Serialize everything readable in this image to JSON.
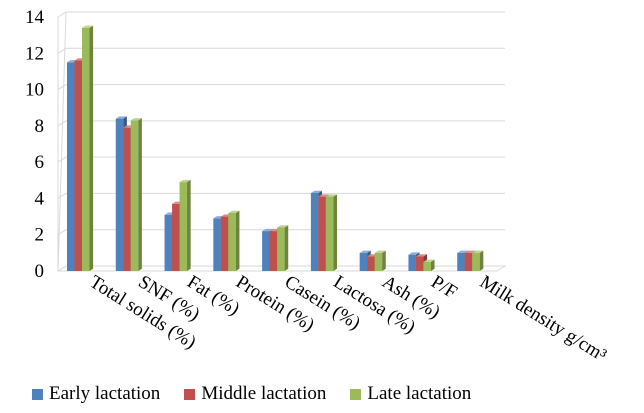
{
  "chart_data": {
    "type": "bar",
    "bar_style": "3d",
    "categories": [
      "Total solids (%)",
      "SNF (%)",
      "Fat (%)",
      "Protein (%)",
      "Casein (%)",
      "Lactosa (%)",
      "Ash (%)",
      "P/F",
      "Milk density g/cm³"
    ],
    "series": [
      {
        "name": "Early lactation",
        "color": "#4f81bd",
        "values": [
          11.5,
          8.4,
          3.1,
          2.9,
          2.2,
          4.3,
          1.0,
          0.9,
          1.0
        ]
      },
      {
        "name": "Middle lactation",
        "color": "#c0504d",
        "values": [
          11.6,
          7.9,
          3.7,
          3.0,
          2.2,
          4.1,
          0.8,
          0.8,
          1.0
        ]
      },
      {
        "name": "Late lactation",
        "color": "#9bbb59",
        "values": [
          13.4,
          8.3,
          4.9,
          3.2,
          2.4,
          4.1,
          1.0,
          0.5,
          1.0
        ]
      }
    ],
    "yticks": [
      "0",
      "2",
      "4",
      "6",
      "8",
      "10",
      "12",
      "14"
    ],
    "ylim": [
      0,
      14
    ],
    "grid": true,
    "legend_position": "bottom"
  }
}
